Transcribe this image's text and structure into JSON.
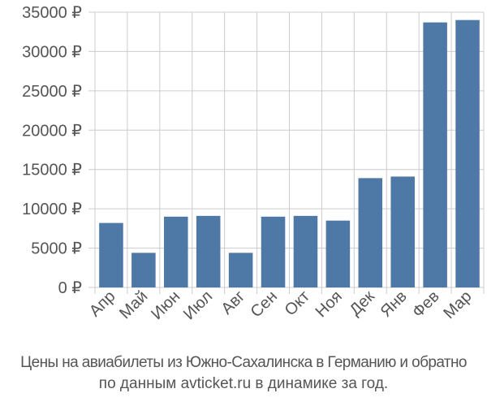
{
  "chart_data": {
    "type": "bar",
    "categories": [
      "Апр",
      "Май",
      "Июн",
      "Июл",
      "Авг",
      "Сен",
      "Окт",
      "Ноя",
      "Дек",
      "Янв",
      "Фев",
      "Мар"
    ],
    "values": [
      8200,
      4400,
      9000,
      9100,
      4400,
      9000,
      9100,
      8500,
      13900,
      14100,
      33700,
      34000
    ],
    "yticks": [
      "0 ₽",
      "5000 ₽",
      "10000 ₽",
      "15000 ₽",
      "20000 ₽",
      "25000 ₽",
      "30000 ₽",
      "35000 ₽"
    ],
    "ylim": [
      0,
      35000
    ],
    "grid": true,
    "bar_color": "#4e79a7",
    "grid_color": "#cccccc",
    "label_color": "#555555"
  },
  "caption": {
    "line1": "Цены на авиабилеты из Южно-Сахалинска в Германию и обратно",
    "line2": "по данным avticket.ru в динамике за год."
  }
}
